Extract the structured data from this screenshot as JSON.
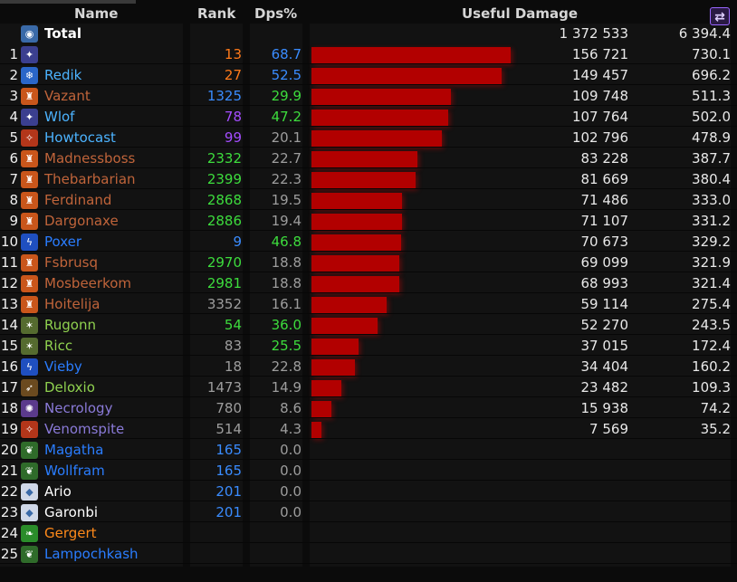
{
  "header": {
    "name": "Name",
    "rank": "Rank",
    "dps_pct": "Dps%",
    "useful_damage": "Useful Damage",
    "swap_icon": "swap-arrows-icon",
    "swap_glyph": "⇄"
  },
  "total": {
    "label": "Total",
    "damage": "1 372 533",
    "dps": "6 394.4",
    "icon": "total-icon",
    "icon_color": "#3a6aa8",
    "icon_glyph": "◉"
  },
  "rows": [
    {
      "idx": "1",
      "name": "",
      "name_color": "#ffffff",
      "rank": "13",
      "rank_color": "#ff7a1a",
      "dps_pct": "68.7",
      "dps_color": "#3a8cff",
      "bar": 1.0,
      "damage": "156 721",
      "dps": "730.1",
      "icon": "dagger-icon",
      "icon_color": "#3b3f8f",
      "icon_glyph": "✦"
    },
    {
      "idx": "2",
      "name": "Redik",
      "name_color": "#4cb3ff",
      "rank": "27",
      "rank_color": "#ff7a1a",
      "dps_pct": "52.5",
      "dps_color": "#3a8cff",
      "bar": 0.953,
      "damage": "149 457",
      "dps": "696.2",
      "icon": "frost-icon",
      "icon_color": "#2a66c8",
      "icon_glyph": "❄"
    },
    {
      "idx": "3",
      "name": "Vazant",
      "name_color": "#c0643a",
      "rank": "1325",
      "rank_color": "#3a8cff",
      "dps_pct": "29.9",
      "dps_color": "#3ddc3d",
      "bar": 0.701,
      "damage": "109 748",
      "dps": "511.3",
      "icon": "warrior-helm-icon",
      "icon_color": "#c9561b",
      "icon_glyph": "♜"
    },
    {
      "idx": "4",
      "name": "Wlof",
      "name_color": "#4cb3ff",
      "rank": "78",
      "rank_color": "#a44dff",
      "dps_pct": "47.2",
      "dps_color": "#3ddc3d",
      "bar": 0.688,
      "damage": "107 764",
      "dps": "502.0",
      "icon": "dagger-icon",
      "icon_color": "#3b3f8f",
      "icon_glyph": "✦"
    },
    {
      "idx": "5",
      "name": "Howtocast",
      "name_color": "#4cb3ff",
      "rank": "99",
      "rank_color": "#a44dff",
      "dps_pct": "20.1",
      "dps_color": "#9d9d9d",
      "bar": 0.656,
      "damage": "102 796",
      "dps": "478.9",
      "icon": "fire-icon",
      "icon_color": "#b3361a",
      "icon_glyph": "✧"
    },
    {
      "idx": "6",
      "name": "Madnessboss",
      "name_color": "#c0643a",
      "rank": "2332",
      "rank_color": "#3ddc3d",
      "dps_pct": "22.7",
      "dps_color": "#9d9d9d",
      "bar": 0.531,
      "damage": "83 228",
      "dps": "387.7",
      "icon": "warrior-helm-icon",
      "icon_color": "#c9561b",
      "icon_glyph": "♜"
    },
    {
      "idx": "7",
      "name": "Thebarbarian",
      "name_color": "#c0643a",
      "rank": "2399",
      "rank_color": "#3ddc3d",
      "dps_pct": "22.3",
      "dps_color": "#9d9d9d",
      "bar": 0.521,
      "damage": "81 669",
      "dps": "380.4",
      "icon": "warrior-helm-icon",
      "icon_color": "#c9561b",
      "icon_glyph": "♜"
    },
    {
      "idx": "8",
      "name": "Ferdinand",
      "name_color": "#c0643a",
      "rank": "2868",
      "rank_color": "#3ddc3d",
      "dps_pct": "19.5",
      "dps_color": "#9d9d9d",
      "bar": 0.456,
      "damage": "71 486",
      "dps": "333.0",
      "icon": "warrior-helm-icon",
      "icon_color": "#c9561b",
      "icon_glyph": "♜"
    },
    {
      "idx": "9",
      "name": "Dargonaxe",
      "name_color": "#c0643a",
      "rank": "2886",
      "rank_color": "#3ddc3d",
      "dps_pct": "19.4",
      "dps_color": "#9d9d9d",
      "bar": 0.454,
      "damage": "71 107",
      "dps": "331.2",
      "icon": "warrior-helm-icon",
      "icon_color": "#c9561b",
      "icon_glyph": "♜"
    },
    {
      "idx": "10",
      "name": "Poxer",
      "name_color": "#2a7dff",
      "rank": "9",
      "rank_color": "#3a8cff",
      "dps_pct": "46.8",
      "dps_color": "#3ddc3d",
      "bar": 0.451,
      "damage": "70 673",
      "dps": "329.2",
      "icon": "lightning-icon",
      "icon_color": "#1f4fc0",
      "icon_glyph": "ϟ"
    },
    {
      "idx": "11",
      "name": "Fsbrusq",
      "name_color": "#c0643a",
      "rank": "2970",
      "rank_color": "#3ddc3d",
      "dps_pct": "18.8",
      "dps_color": "#9d9d9d",
      "bar": 0.441,
      "damage": "69 099",
      "dps": "321.9",
      "icon": "warrior-helm-icon",
      "icon_color": "#c9561b",
      "icon_glyph": "♜"
    },
    {
      "idx": "12",
      "name": "Mosbeerkom",
      "name_color": "#c0643a",
      "rank": "2981",
      "rank_color": "#3ddc3d",
      "dps_pct": "18.8",
      "dps_color": "#9d9d9d",
      "bar": 0.44,
      "damage": "68 993",
      "dps": "321.4",
      "icon": "warrior-helm-icon",
      "icon_color": "#c9561b",
      "icon_glyph": "♜"
    },
    {
      "idx": "13",
      "name": "Hoitelija",
      "name_color": "#c0643a",
      "rank": "3352",
      "rank_color": "#9d9d9d",
      "dps_pct": "16.1",
      "dps_color": "#9d9d9d",
      "bar": 0.377,
      "damage": "59 114",
      "dps": "275.4",
      "icon": "warrior-helm-icon",
      "icon_color": "#c9561b",
      "icon_glyph": "♜"
    },
    {
      "idx": "14",
      "name": "Rugonn",
      "name_color": "#8fd14f",
      "rank": "54",
      "rank_color": "#3ddc3d",
      "dps_pct": "36.0",
      "dps_color": "#3ddc3d",
      "bar": 0.334,
      "damage": "52 270",
      "dps": "243.5",
      "icon": "beast-icon",
      "icon_color": "#556b2f",
      "icon_glyph": "✶"
    },
    {
      "idx": "15",
      "name": "Ricc",
      "name_color": "#8fd14f",
      "rank": "83",
      "rank_color": "#9d9d9d",
      "dps_pct": "25.5",
      "dps_color": "#3ddc3d",
      "bar": 0.236,
      "damage": "37 015",
      "dps": "172.4",
      "icon": "beast-icon",
      "icon_color": "#556b2f",
      "icon_glyph": "✶"
    },
    {
      "idx": "16",
      "name": "Vieby",
      "name_color": "#2a7dff",
      "rank": "18",
      "rank_color": "#9d9d9d",
      "dps_pct": "22.8",
      "dps_color": "#9d9d9d",
      "bar": 0.219,
      "damage": "34 404",
      "dps": "160.2",
      "icon": "lightning-icon",
      "icon_color": "#1f4fc0",
      "icon_glyph": "ϟ"
    },
    {
      "idx": "17",
      "name": "Deloxio",
      "name_color": "#8fd14f",
      "rank": "1473",
      "rank_color": "#9d9d9d",
      "dps_pct": "14.9",
      "dps_color": "#9d9d9d",
      "bar": 0.15,
      "damage": "23 482",
      "dps": "109.3",
      "icon": "spear-icon",
      "icon_color": "#6b4a1f",
      "icon_glyph": "➶"
    },
    {
      "idx": "18",
      "name": "Necrology",
      "name_color": "#8a7ad8",
      "rank": "780",
      "rank_color": "#9d9d9d",
      "dps_pct": "8.6",
      "dps_color": "#9d9d9d",
      "bar": 0.102,
      "damage": "15 938",
      "dps": "74.2",
      "icon": "shadow-icon",
      "icon_color": "#5b3a8c",
      "icon_glyph": "✺"
    },
    {
      "idx": "19",
      "name": "Venomspite",
      "name_color": "#8a7ad8",
      "rank": "514",
      "rank_color": "#9d9d9d",
      "dps_pct": "4.3",
      "dps_color": "#9d9d9d",
      "bar": 0.048,
      "damage": "7 569",
      "dps": "35.2",
      "icon": "fire-icon",
      "icon_color": "#b3361a",
      "icon_glyph": "✧"
    },
    {
      "idx": "20",
      "name": "Magatha",
      "name_color": "#2a7dff",
      "rank": "165",
      "rank_color": "#3a8cff",
      "dps_pct": "0.0",
      "dps_color": "#9d9d9d",
      "bar": 0,
      "damage": "",
      "dps": "",
      "icon": "nature-icon",
      "icon_color": "#2f6b2a",
      "icon_glyph": "❦"
    },
    {
      "idx": "21",
      "name": "Wollfram",
      "name_color": "#2a7dff",
      "rank": "165",
      "rank_color": "#3a8cff",
      "dps_pct": "0.0",
      "dps_color": "#9d9d9d",
      "bar": 0,
      "damage": "",
      "dps": "",
      "icon": "nature-icon",
      "icon_color": "#2f6b2a",
      "icon_glyph": "❦"
    },
    {
      "idx": "22",
      "name": "Ario",
      "name_color": "#ffffff",
      "rank": "201",
      "rank_color": "#3a8cff",
      "dps_pct": "0.0",
      "dps_color": "#9d9d9d",
      "bar": 0,
      "damage": "",
      "dps": "",
      "icon": "holy-icon",
      "icon_color": "#cfd8e8",
      "icon_glyph": "◆"
    },
    {
      "idx": "23",
      "name": "Garonbi",
      "name_color": "#ffffff",
      "rank": "201",
      "rank_color": "#3a8cff",
      "dps_pct": "0.0",
      "dps_color": "#9d9d9d",
      "bar": 0,
      "damage": "",
      "dps": "",
      "icon": "holy-icon",
      "icon_color": "#cfd8e8",
      "icon_glyph": "◆"
    },
    {
      "idx": "24",
      "name": "Gergert",
      "name_color": "#ff8a1a",
      "rank": "",
      "rank_color": "#9d9d9d",
      "dps_pct": "",
      "dps_color": "#9d9d9d",
      "bar": 0,
      "damage": "",
      "dps": "",
      "icon": "leaf-icon",
      "icon_color": "#2a8c2a",
      "icon_glyph": "❧"
    },
    {
      "idx": "25",
      "name": "Lampochkash",
      "name_color": "#2a7dff",
      "rank": "",
      "rank_color": "#9d9d9d",
      "dps_pct": "",
      "dps_color": "#9d9d9d",
      "bar": 0,
      "damage": "",
      "dps": "",
      "icon": "nature-icon",
      "icon_color": "#2f6b2a",
      "icon_glyph": "❦"
    }
  ]
}
